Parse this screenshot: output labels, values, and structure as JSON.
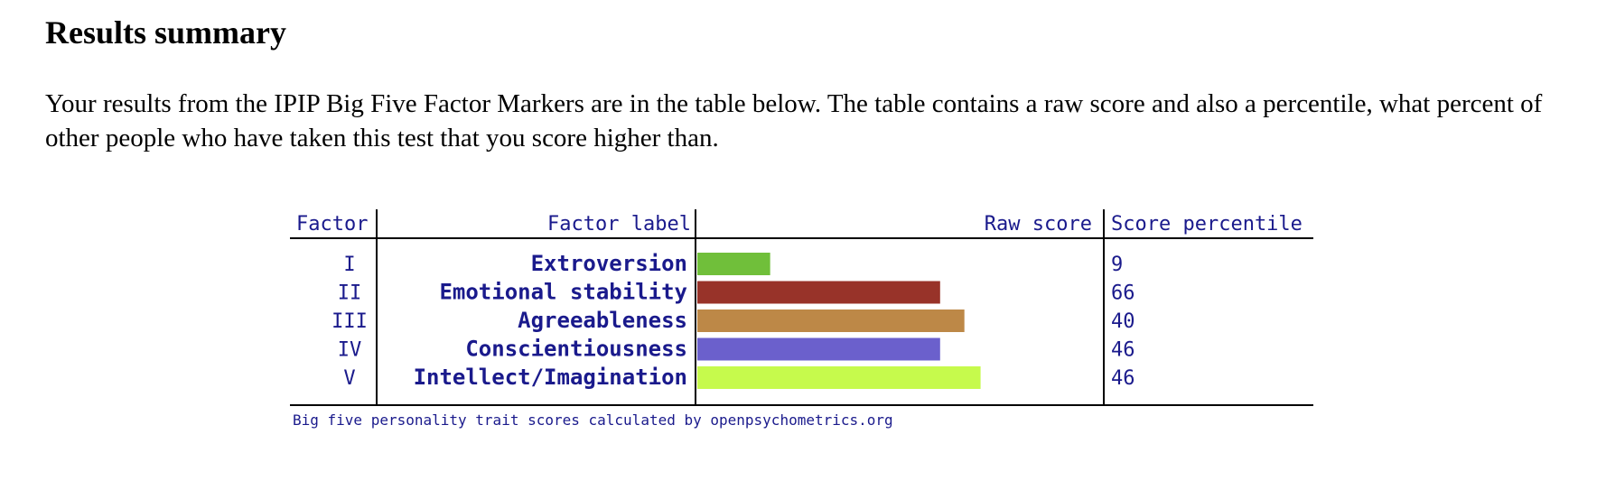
{
  "page": {
    "title": "Results summary",
    "intro": "Your results from the IPIP Big Five Factor Markers are in the table below. The table contains a raw score and also a percentile, what percent of other people who have taken this test that you score higher than."
  },
  "chart_data": {
    "type": "bar",
    "orientation": "horizontal",
    "headers": {
      "factor": "Factor",
      "label": "Factor label",
      "raw": "Raw score",
      "percentile": "Score percentile"
    },
    "rows": [
      {
        "factor": "I",
        "label": "Extroversion",
        "raw": 9,
        "percentile": "9",
        "color": "#70bf3a"
      },
      {
        "factor": "II",
        "label": "Emotional stability",
        "raw": 30,
        "percentile": "66",
        "color": "#983329"
      },
      {
        "factor": "III",
        "label": "Agreeableness",
        "raw": 33,
        "percentile": "40",
        "color": "#bd8847"
      },
      {
        "factor": "IV",
        "label": "Conscientiousness",
        "raw": 30,
        "percentile": "46",
        "color": "#6b60cc"
      },
      {
        "factor": "V",
        "label": "Intellect/Imagination",
        "raw": 35,
        "percentile": "46",
        "color": "#c6fa4c"
      }
    ],
    "xlim": [
      0,
      50
    ],
    "caption": "Big five personality trait scores calculated by openpsychometrics.org"
  }
}
